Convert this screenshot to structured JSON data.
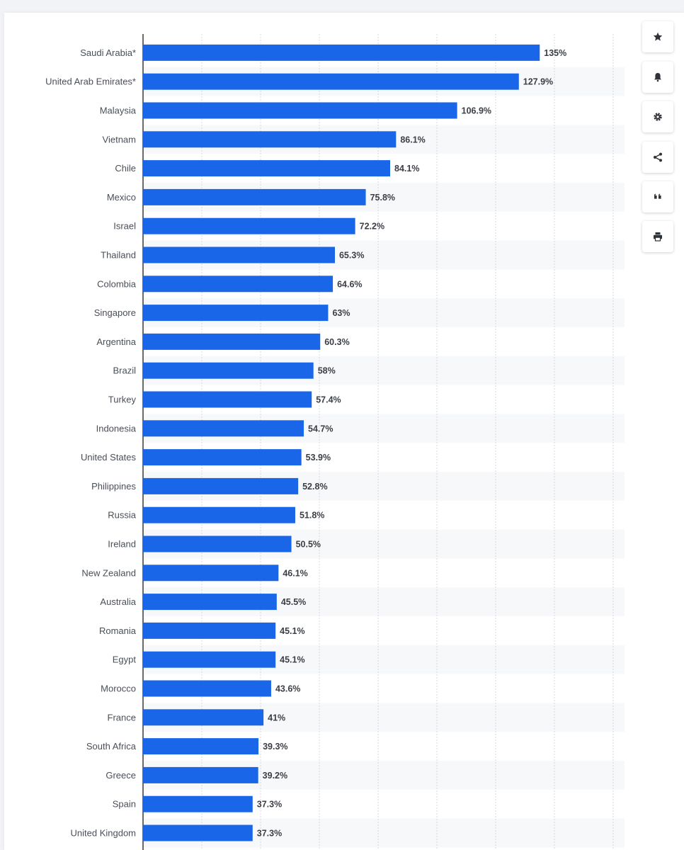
{
  "chart_data": {
    "type": "bar",
    "orientation": "horizontal",
    "categories": [
      "Saudi Arabia*",
      "United Arab Emirates*",
      "Malaysia",
      "Vietnam",
      "Chile",
      "Mexico",
      "Israel",
      "Thailand",
      "Colombia",
      "Singapore",
      "Argentina",
      "Brazil",
      "Turkey",
      "Indonesia",
      "United States",
      "Philippines",
      "Russia",
      "Ireland",
      "New Zealand",
      "Australia",
      "Romania",
      "Egypt",
      "Morocco",
      "France",
      "South Africa",
      "Greece",
      "Spain",
      "United Kingdom"
    ],
    "values": [
      135,
      127.9,
      106.9,
      86.1,
      84.1,
      75.8,
      72.2,
      65.3,
      64.6,
      63,
      60.3,
      58,
      57.4,
      54.7,
      53.9,
      52.8,
      51.8,
      50.5,
      46.1,
      45.5,
      45.1,
      45.1,
      43.6,
      41,
      39.3,
      39.2,
      37.3,
      37.3
    ],
    "value_labels": [
      "135%",
      "127.9%",
      "106.9%",
      "86.1%",
      "84.1%",
      "75.8%",
      "72.2%",
      "65.3%",
      "64.6%",
      "63%",
      "60.3%",
      "58%",
      "57.4%",
      "54.7%",
      "53.9%",
      "52.8%",
      "51.8%",
      "50.5%",
      "46.1%",
      "45.5%",
      "45.1%",
      "45.1%",
      "43.6%",
      "41%",
      "39.3%",
      "39.2%",
      "37.3%",
      "37.3%"
    ],
    "xlim": [
      0,
      160
    ],
    "grid": true,
    "bar_color": "#1a66e8"
  },
  "toolbar": {
    "icons": [
      "star-icon",
      "bell-icon",
      "gear-icon",
      "share-icon",
      "quote-icon",
      "print-icon"
    ]
  }
}
